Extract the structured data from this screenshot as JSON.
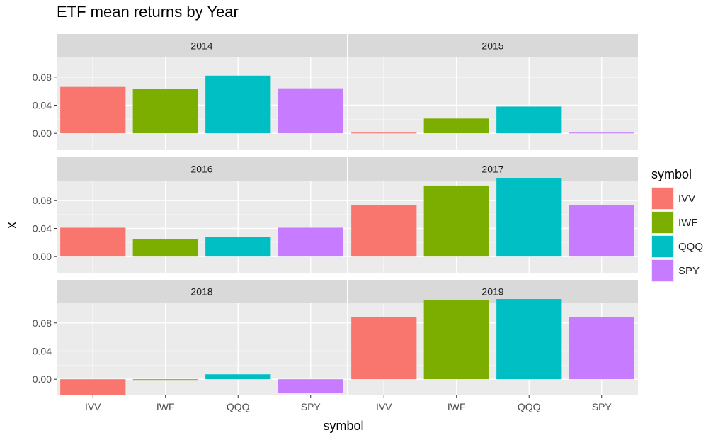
{
  "title": "ETF mean returns by Year",
  "chart_data": {
    "type": "bar",
    "facet_layout": "2 columns x 3 rows, shared axes",
    "title": "ETF mean returns by Year",
    "xlabel": "symbol",
    "ylabel": "x",
    "categories": [
      "IVV",
      "IWF",
      "QQQ",
      "SPY"
    ],
    "colors": [
      "#F8766D",
      "#7CAE00",
      "#00BFC4",
      "#C77CFF"
    ],
    "yticks": [
      0.0,
      0.04,
      0.08
    ],
    "ytick_labels": [
      "0.00",
      "0.04",
      "0.08"
    ],
    "ylim": [
      -0.023,
      0.108
    ],
    "grid": true,
    "legend": {
      "title": "symbol",
      "position": "right"
    },
    "facets": [
      {
        "label": "2014",
        "values": [
          0.066,
          0.063,
          0.082,
          0.064
        ]
      },
      {
        "label": "2015",
        "values": [
          0.001,
          0.021,
          0.038,
          0.001
        ]
      },
      {
        "label": "2016",
        "values": [
          0.041,
          0.025,
          0.028,
          0.041
        ]
      },
      {
        "label": "2017",
        "values": [
          0.073,
          0.101,
          0.112,
          0.073
        ]
      },
      {
        "label": "2018",
        "values": [
          -0.022,
          -0.002,
          0.007,
          -0.02
        ]
      },
      {
        "label": "2019",
        "values": [
          0.088,
          0.112,
          0.114,
          0.088
        ]
      }
    ]
  }
}
